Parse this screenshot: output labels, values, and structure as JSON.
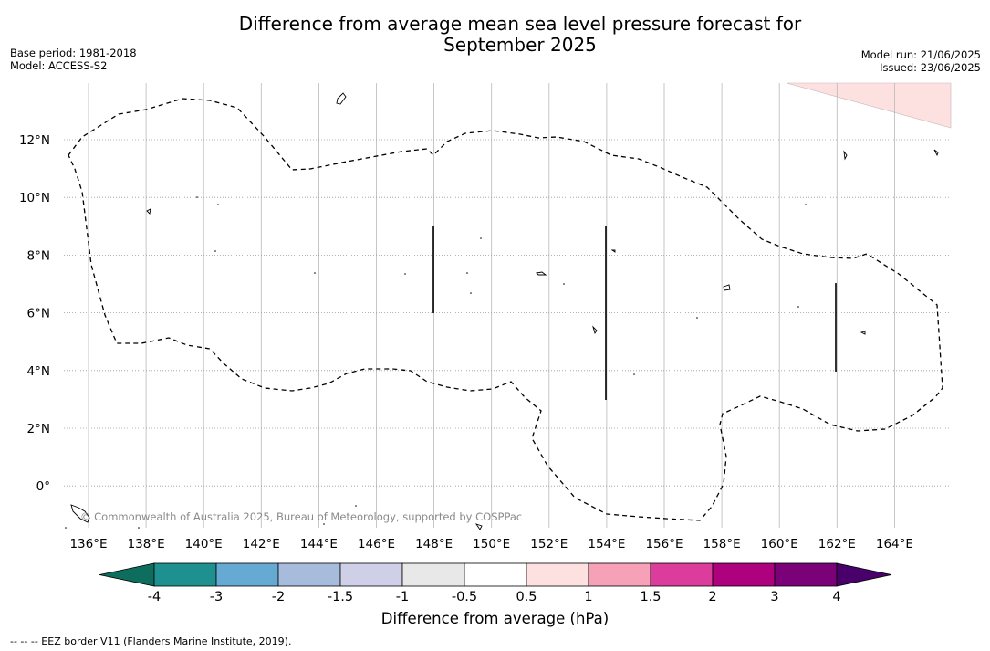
{
  "title_line1": "Difference from average mean sea level pressure forecast for",
  "title_line2": "September 2025",
  "base_period": "Base period: 1981-2018",
  "model": "Model: ACCESS-S2",
  "model_run": "Model run: 21/06/2025",
  "issued": "Issued: 23/06/2025",
  "copyright": "© Commonwealth of Australia 2025, Bureau of Meteorology, supported by COSPPac",
  "lon_ticks": [
    "136°E",
    "138°E",
    "140°E",
    "142°E",
    "144°E",
    "146°E",
    "148°E",
    "150°E",
    "152°E",
    "154°E",
    "156°E",
    "158°E",
    "160°E",
    "162°E",
    "164°E"
  ],
  "lat_ticks": [
    "12°N",
    "10°N",
    "8°N",
    "6°N",
    "4°N",
    "2°N",
    "0°"
  ],
  "colorbar": {
    "label": "Difference from average (hPa)",
    "ticks": [
      "-4",
      "-3",
      "-2",
      "-1.5",
      "-1",
      "-0.5",
      "0.5",
      "1",
      "1.5",
      "2",
      "3",
      "4"
    ],
    "colors": [
      "#1f9090",
      "#66a9d2",
      "#a7bcdc",
      "#cfd0e7",
      "#e8e8e8",
      "#ffffff",
      "#fde1e1",
      "#f7a1b9",
      "#dc3c9b",
      "#ae017e",
      "#7a0177"
    ],
    "under_color": "#0e6e5e",
    "over_color": "#4a006a"
  },
  "footnote": "--  --  -- EEZ border V11 (Flanders Marine Institute, 2019)."
}
